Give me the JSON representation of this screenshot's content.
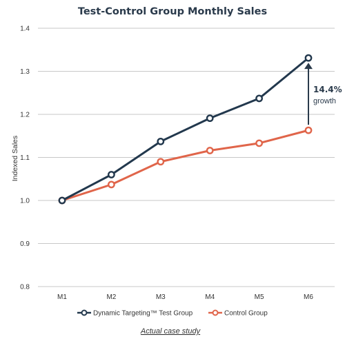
{
  "chart_data": {
    "type": "line",
    "title": "Test-Control Group Monthly Sales",
    "ylabel": "Indexed Sales",
    "xlabel": "",
    "categories": [
      "M1",
      "M2",
      "M3",
      "M4",
      "M5",
      "M6"
    ],
    "ylim": [
      0.8,
      1.4
    ],
    "yticks": [
      "0.8",
      "0.9",
      "1.0",
      "1.1",
      "1.2",
      "1.3",
      "1.4"
    ],
    "grid": "horizontal",
    "series": [
      {
        "name": "Dynamic Targeting™ Test Group",
        "color": "#22384d",
        "values": [
          1.0,
          1.06,
          1.137,
          1.191,
          1.237,
          1.331
        ]
      },
      {
        "name": "Control Group",
        "color": "#e0654a",
        "values": [
          1.0,
          1.037,
          1.09,
          1.116,
          1.133,
          1.163
        ]
      }
    ],
    "annotation": {
      "value": "14.4%",
      "text": "growth",
      "from_series": 1,
      "to_series": 0,
      "category_index": 5
    },
    "footnote": "Actual case study",
    "legend_position": "bottom"
  }
}
